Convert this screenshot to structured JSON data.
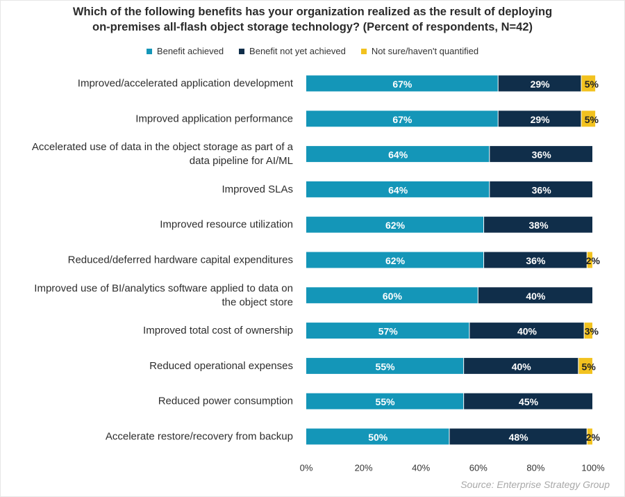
{
  "title_line1": "Which of the following benefits has your organization realized as the result of deploying",
  "title_line2": "on-premises all-flash object storage technology? (Percent of respondents, N=42)",
  "source": "Source: Enterprise Strategy Group",
  "colors": {
    "achieved": "#1496b8",
    "not_yet": "#102e4a",
    "not_sure": "#f2c21f"
  },
  "chart_data": {
    "type": "bar",
    "orientation": "horizontal",
    "stacked": true,
    "title": "Which of the following benefits has your organization realized as the result of deploying on-premises all-flash object storage technology? (Percent of respondents, N=42)",
    "categories": [
      [
        "Improved/accelerated application development"
      ],
      [
        "Improved application performance"
      ],
      [
        "Accelerated use of data in the object storage as part of a",
        "data pipeline for AI/ML"
      ],
      [
        "Improved SLAs"
      ],
      [
        "Improved resource utilization"
      ],
      [
        "Reduced/deferred hardware capital expenditures"
      ],
      [
        "Improved use of BI/analytics software applied to data on",
        "the object store"
      ],
      [
        "Improved total cost of ownership"
      ],
      [
        "Reduced operational expenses"
      ],
      [
        "Reduced power consumption"
      ],
      [
        "Accelerate restore/recovery from backup"
      ]
    ],
    "series": [
      {
        "name": "Benefit achieved",
        "values": [
          67,
          67,
          64,
          64,
          62,
          62,
          60,
          57,
          55,
          55,
          50
        ]
      },
      {
        "name": "Benefit not yet achieved",
        "values": [
          29,
          29,
          36,
          36,
          38,
          36,
          40,
          40,
          40,
          45,
          48
        ]
      },
      {
        "name": "Not sure/haven't quantified",
        "values": [
          5,
          5,
          0,
          0,
          0,
          2,
          0,
          3,
          5,
          0,
          2
        ]
      }
    ],
    "value_suffix": "%",
    "xlim": [
      0,
      100
    ],
    "xticks": [
      "0%",
      "20%",
      "40%",
      "60%",
      "80%",
      "100%"
    ],
    "legend_position": "top",
    "grid": false
  }
}
